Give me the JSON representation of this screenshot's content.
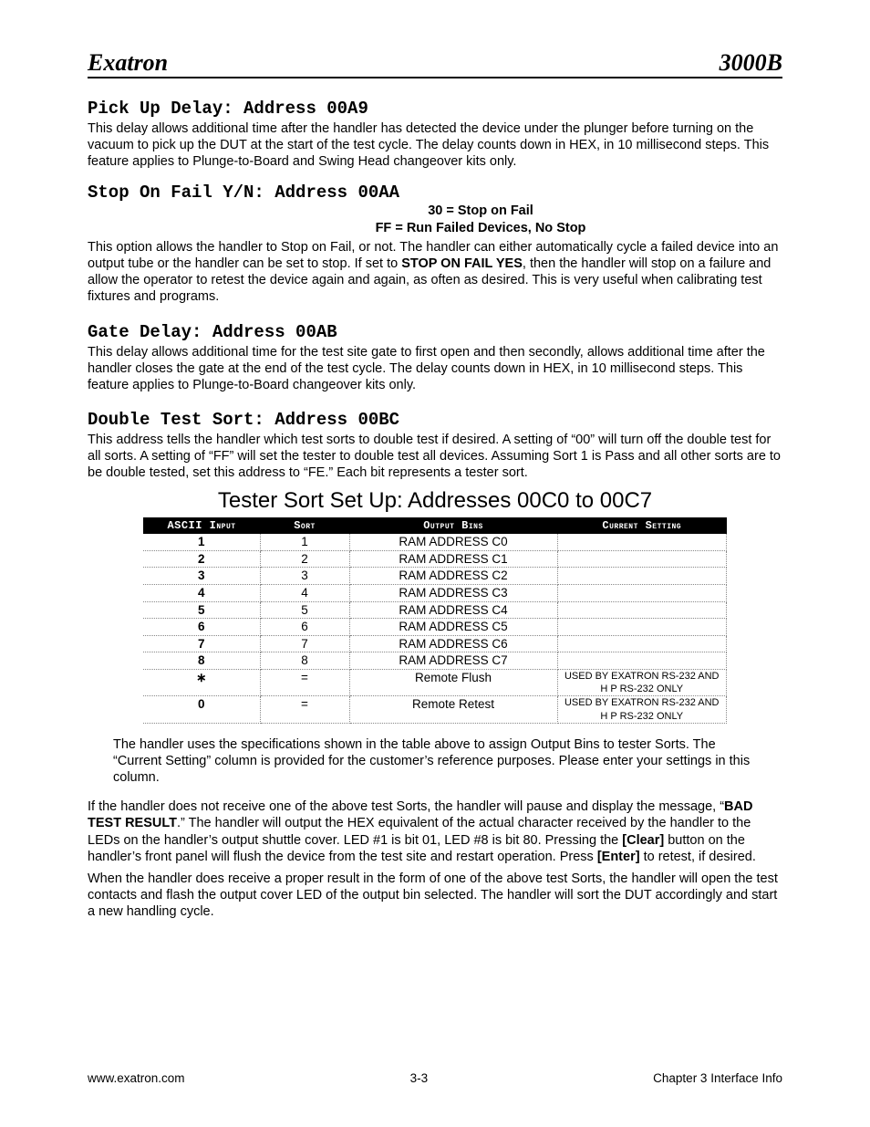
{
  "header": {
    "left": "Exatron",
    "right": "3000B"
  },
  "sections": {
    "pickup": {
      "heading": "Pick Up Delay:  Address 00A9",
      "body": "This delay allows additional time after the handler has detected the device under the plunger before turning on the vacuum to pick up the DUT at the start of the test cycle.  The delay counts down in HEX, in 10 millisecond steps.  This feature applies to Plunge-to-Board and Swing Head changeover kits only."
    },
    "stopfail": {
      "heading": "Stop On Fail Y/N:  Address  00AA",
      "opt1": "30 = Stop on Fail",
      "opt2": "FF = Run Failed Devices, No Stop",
      "body_a": "This option allows the handler to Stop on Fail, or not.  The handler can either automatically cycle a failed device into an output tube or the handler can be set to stop.  If set to ",
      "body_bold": "STOP ON FAIL YES",
      "body_b": ", then the handler will stop on a failure and allow the operator to retest the device again and again, as often as desired.  This is very useful when calibrating test fixtures and programs."
    },
    "gate": {
      "heading": "Gate Delay:  Address 00AB",
      "body": "This delay allows additional time for the test site gate to first open and then secondly, allows additional time after the handler closes the gate at the end of the test cycle.  The delay counts down in HEX, in 10 millisecond steps.  This feature applies to Plunge-to-Board changeover kits only."
    },
    "double": {
      "heading": "Double Test Sort:  Address 00BC",
      "body_a": "This address tells the handler which test sorts to double test if desired.  A setting of “00” will turn ",
      "body_off": "off",
      "body_b": " the double test for all sorts.  A setting of “FF” will set the tester to double test ",
      "body_all": "all",
      "body_c": " devices.  Assuming Sort 1 is Pass and all other sorts are to be double tested, set this address to “FE.”  Each bit represents a tester sort."
    }
  },
  "table": {
    "title": "Tester Sort Set Up:  Addresses 00C0 to 00C7",
    "headers": {
      "c1": "ASCII Input",
      "c2": "Sort",
      "c3": "Output Bins",
      "c4": "Current Setting"
    },
    "rows": [
      {
        "ascii": "1",
        "sort": "1",
        "bins": "RAM ADDRESS C0",
        "cur": ""
      },
      {
        "ascii": "2",
        "sort": "2",
        "bins": "RAM ADDRESS C1",
        "cur": ""
      },
      {
        "ascii": "3",
        "sort": "3",
        "bins": "RAM ADDRESS C2",
        "cur": ""
      },
      {
        "ascii": "4",
        "sort": "4",
        "bins": "RAM ADDRESS C3",
        "cur": ""
      },
      {
        "ascii": "5",
        "sort": "5",
        "bins": "RAM ADDRESS C4",
        "cur": ""
      },
      {
        "ascii": "6",
        "sort": "6",
        "bins": "RAM ADDRESS C5",
        "cur": ""
      },
      {
        "ascii": "7",
        "sort": "7",
        "bins": "RAM ADDRESS C6",
        "cur": ""
      },
      {
        "ascii": "8",
        "sort": "8",
        "bins": "RAM ADDRESS C7",
        "cur": ""
      },
      {
        "ascii": "∗",
        "sort": "=",
        "bins": "Remote Flush",
        "cur": "USED BY EXATRON RS-232 AND H P RS-232 ONLY"
      },
      {
        "ascii": "0",
        "sort": "=",
        "bins": "Remote Retest",
        "cur": "USED BY EXATRON RS-232 AND H P RS-232 ONLY"
      }
    ],
    "note": "The handler uses the specifications shown in the table above to assign Output Bins to tester Sorts.  The “Current Setting” column is provided for the customer’s reference purposes.  Please enter your settings in this column."
  },
  "closing": {
    "p1a": "If the handler does not receive one of the above test Sorts, the handler will pause and display the message, “",
    "p1bold1": "BAD TEST RESULT",
    "p1b": ".”  The handler will output the HEX equivalent of the actual character received by the handler to the LEDs on the handler’s output shuttle cover.  LED #1 is bit 01, LED #8 is bit 80.  Pressing the ",
    "p1bold2": "[Clear]",
    "p1c": " button on the handler’s front panel will flush the device from the test site and restart operation.  Press ",
    "p1bold3": "[Enter]",
    "p1d": " to retest, if desired.",
    "p2": "When the handler does receive a proper result in the form of one of the above test Sorts, the handler will open the test contacts and flash the output cover LED of the output bin selected.  The handler will sort the DUT accordingly and start a new handling cycle."
  },
  "footer": {
    "left": "www.exatron.com",
    "center": "3-3",
    "right": "Chapter 3 Interface Info"
  }
}
